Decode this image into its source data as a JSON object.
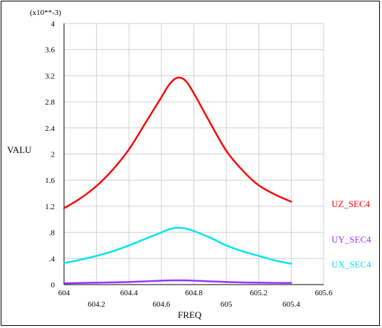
{
  "chart_data": {
    "type": "line",
    "multiplier_label": "(x10**-3)",
    "xlabel": "FREQ",
    "ylabel": "VALU",
    "xlim": [
      604,
      605.6
    ],
    "ylim": [
      0,
      4
    ],
    "xticks": [
      604,
      604.2,
      604.4,
      604.6,
      604.8,
      605,
      605.2,
      605.4,
      605.6
    ],
    "xtick_labels": [
      "604",
      "604.2",
      "604.4",
      "604.6",
      "604.8",
      "605",
      "605.2",
      "605.4",
      "605.6"
    ],
    "yticks": [
      0,
      0.4,
      0.8,
      1.2,
      1.6,
      2,
      2.4,
      2.8,
      3.2,
      3.6,
      4
    ],
    "ytick_labels": [
      "0",
      ".4",
      ".8",
      "1.2",
      "1.6",
      "2",
      "2.4",
      "2.8",
      "3.2",
      "3.6",
      "4"
    ],
    "grid": true,
    "legend": "right",
    "series": [
      {
        "name": "UZ_SEC4",
        "color": "#ff0000",
        "x": [
          604,
          604.1,
          604.2,
          604.3,
          604.4,
          604.5,
          604.6,
          604.65,
          604.7,
          604.75,
          604.8,
          604.9,
          605,
          605.1,
          605.2,
          605.3,
          605.4
        ],
        "y": [
          1.17,
          1.32,
          1.51,
          1.76,
          2.07,
          2.47,
          2.87,
          3.07,
          3.17,
          3.12,
          2.93,
          2.48,
          2.05,
          1.75,
          1.52,
          1.38,
          1.27
        ]
      },
      {
        "name": "UY_SEC4",
        "color": "#9933ff",
        "x": [
          604,
          604.2,
          604.4,
          604.6,
          604.7,
          604.8,
          605,
          605.2,
          605.4
        ],
        "y": [
          0.02,
          0.03,
          0.04,
          0.06,
          0.065,
          0.06,
          0.04,
          0.03,
          0.025
        ]
      },
      {
        "name": "UX_SEC4",
        "color": "#00e5ee",
        "x": [
          604,
          604.1,
          604.2,
          604.3,
          604.4,
          604.5,
          604.6,
          604.65,
          604.7,
          604.75,
          604.8,
          604.9,
          605,
          605.1,
          605.2,
          605.3,
          605.4
        ],
        "y": [
          0.33,
          0.38,
          0.44,
          0.51,
          0.6,
          0.7,
          0.8,
          0.85,
          0.87,
          0.86,
          0.82,
          0.72,
          0.6,
          0.51,
          0.44,
          0.37,
          0.32
        ]
      }
    ]
  }
}
